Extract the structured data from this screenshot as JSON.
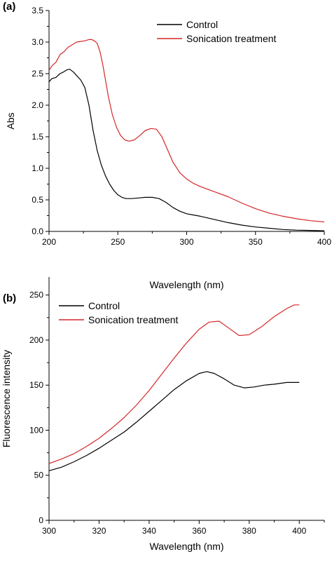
{
  "chart_data": [
    {
      "type": "line",
      "panel_label": "(a)",
      "xlabel": "Wavelength (nm)",
      "ylabel": "Abs",
      "xlim": [
        200,
        400
      ],
      "ylim": [
        0,
        3.5
      ],
      "xticks": [
        200,
        250,
        300,
        350,
        400
      ],
      "yticks": [
        0.0,
        0.5,
        1.0,
        1.5,
        2.0,
        2.5,
        3.0,
        3.5
      ],
      "ytick_decimals": 1,
      "legend_position": "top-right",
      "grid": false,
      "series": [
        {
          "name": "Control",
          "color": "#000000",
          "x": [
            200,
            202,
            205,
            208,
            210,
            213,
            215,
            218,
            220,
            223,
            226,
            229,
            232,
            235,
            238,
            241,
            244,
            247,
            250,
            253,
            256,
            260,
            265,
            270,
            275,
            280,
            285,
            290,
            295,
            300,
            305,
            310,
            320,
            330,
            340,
            350,
            360,
            370,
            380,
            390,
            400
          ],
          "y": [
            2.37,
            2.42,
            2.44,
            2.5,
            2.52,
            2.56,
            2.57,
            2.52,
            2.47,
            2.4,
            2.28,
            2.0,
            1.6,
            1.28,
            1.05,
            0.88,
            0.75,
            0.65,
            0.58,
            0.54,
            0.52,
            0.52,
            0.53,
            0.54,
            0.54,
            0.52,
            0.46,
            0.38,
            0.32,
            0.28,
            0.26,
            0.24,
            0.19,
            0.14,
            0.1,
            0.07,
            0.05,
            0.03,
            0.02,
            0.015,
            0.01
          ]
        },
        {
          "name": "Sonication treatment",
          "color": "#d62728",
          "x": [
            200,
            202,
            205,
            208,
            211,
            214,
            217,
            220,
            223,
            226,
            229,
            231,
            233,
            235,
            237,
            239,
            241,
            243,
            246,
            249,
            252,
            255,
            258,
            262,
            266,
            270,
            274,
            278,
            282,
            286,
            290,
            295,
            300,
            305,
            310,
            320,
            330,
            340,
            350,
            360,
            370,
            380,
            390,
            400
          ],
          "y": [
            2.55,
            2.62,
            2.68,
            2.8,
            2.85,
            2.92,
            2.96,
            3.0,
            3.01,
            3.02,
            3.04,
            3.04,
            3.02,
            2.98,
            2.85,
            2.65,
            2.4,
            2.15,
            1.85,
            1.65,
            1.52,
            1.45,
            1.43,
            1.45,
            1.52,
            1.6,
            1.63,
            1.62,
            1.5,
            1.3,
            1.1,
            0.93,
            0.83,
            0.76,
            0.71,
            0.63,
            0.55,
            0.45,
            0.36,
            0.29,
            0.24,
            0.2,
            0.17,
            0.15
          ]
        }
      ]
    },
    {
      "type": "line",
      "panel_label": "(b)",
      "xlabel": "Wavelength (nm)",
      "ylabel": "Fluorescence intensity",
      "xlim": [
        300,
        410
      ],
      "ylim": [
        0,
        270
      ],
      "xticks": [
        300,
        320,
        340,
        360,
        380,
        400
      ],
      "yticks": [
        0,
        50,
        100,
        150,
        200,
        250
      ],
      "ytick_decimals": 0,
      "legend_position": "top-left",
      "grid": false,
      "series": [
        {
          "name": "Control",
          "color": "#000000",
          "x": [
            300,
            305,
            310,
            315,
            320,
            325,
            330,
            335,
            340,
            345,
            350,
            355,
            360,
            363,
            366,
            370,
            374,
            378,
            382,
            386,
            390,
            395,
            400
          ],
          "y": [
            55,
            59,
            65,
            72,
            80,
            89,
            98,
            109,
            121,
            133,
            145,
            155,
            163,
            165,
            163,
            157,
            150,
            147,
            148,
            150,
            151,
            153,
            153
          ]
        },
        {
          "name": "Sonication treatment",
          "color": "#d62728",
          "x": [
            300,
            305,
            310,
            315,
            320,
            325,
            330,
            335,
            340,
            345,
            350,
            355,
            360,
            364,
            368,
            372,
            376,
            380,
            385,
            390,
            395,
            398,
            400
          ],
          "y": [
            63,
            68,
            74,
            82,
            91,
            102,
            114,
            128,
            144,
            162,
            180,
            197,
            212,
            220,
            221,
            213,
            205,
            206,
            215,
            226,
            235,
            239,
            239
          ]
        }
      ]
    }
  ]
}
